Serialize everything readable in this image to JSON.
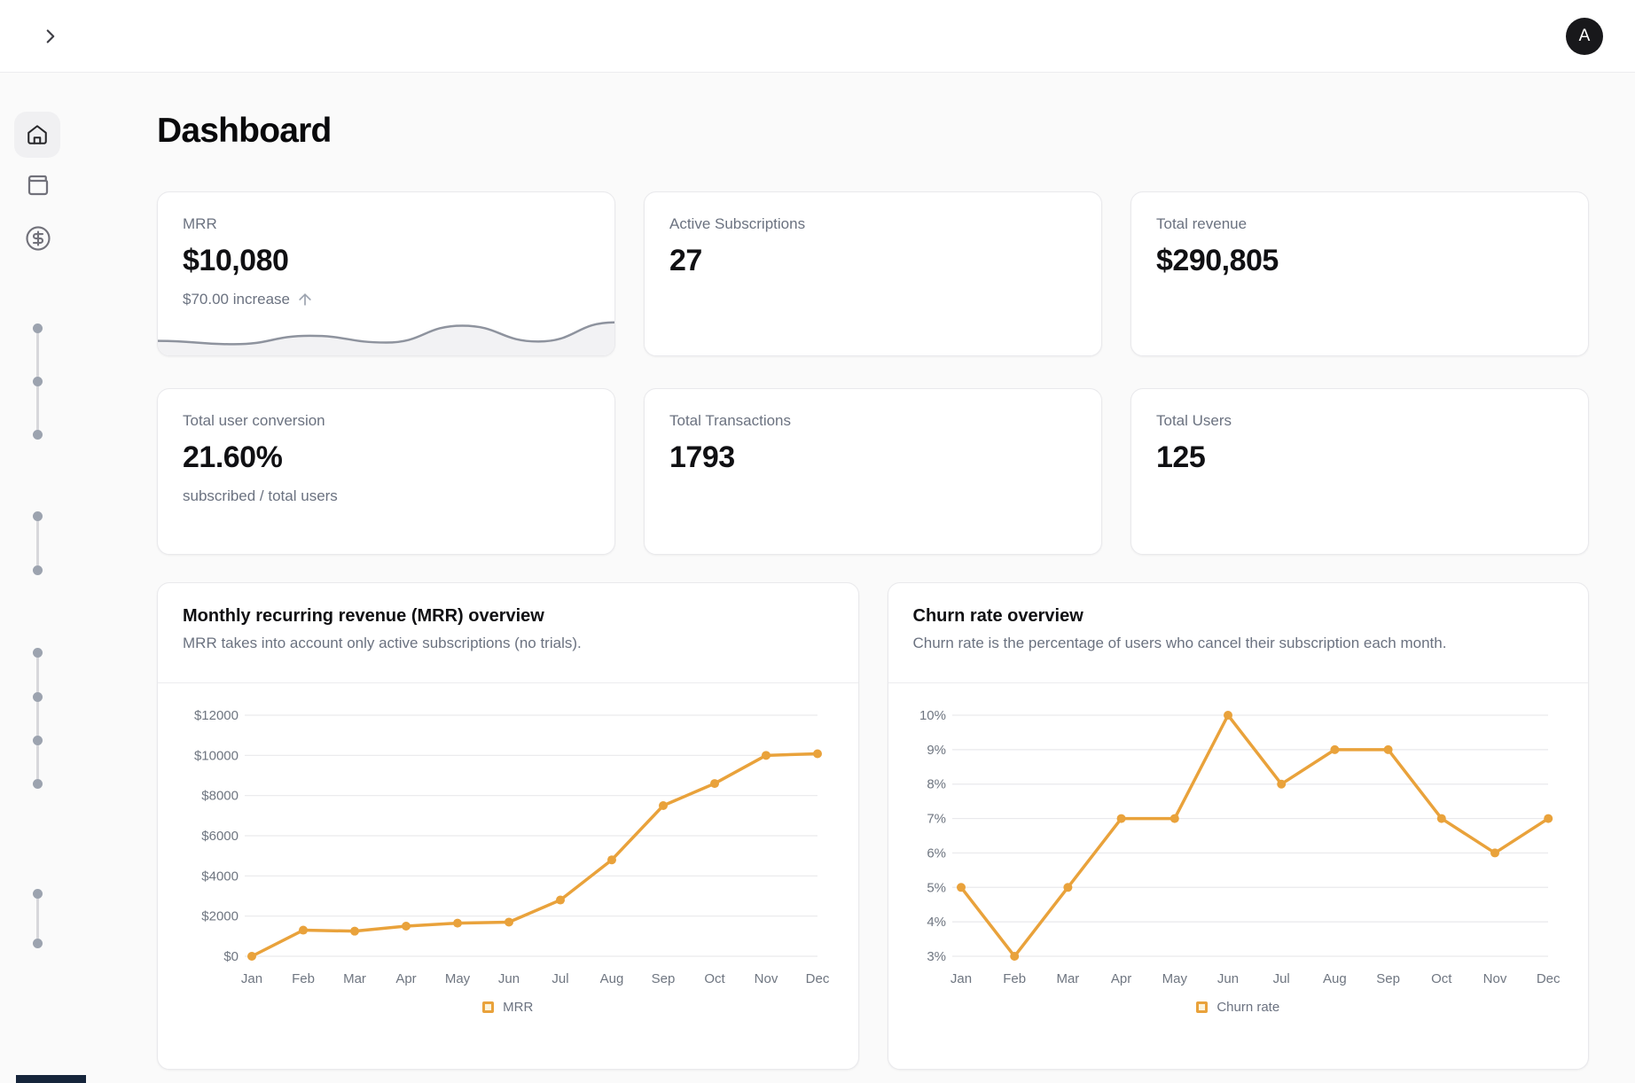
{
  "header": {
    "avatar_initial": "A",
    "collapse_icon": "chevron-right-icon"
  },
  "page": {
    "title": "Dashboard"
  },
  "sidebar": {
    "items": [
      {
        "id": "home",
        "icon": "home-icon",
        "active": true
      },
      {
        "id": "subscriptions",
        "icon": "wallet-icon",
        "active": false
      },
      {
        "id": "revenue",
        "icon": "circle-dollar-icon",
        "active": false
      }
    ]
  },
  "colors": {
    "accent": "#e9a23b",
    "legend_swatch_fill": "#fcf4dd",
    "grid_line": "#e9e9ec",
    "axis_text": "#6f7681",
    "sparkline_stroke": "#8e939e",
    "sparkline_fill": "#f2f2f4",
    "avatar_bg": "#18181b"
  },
  "stats": [
    {
      "label": "MRR",
      "value": "$10,080",
      "change": "$70.00 increase",
      "change_icon": "arrow-up-icon",
      "sparkline": [
        0.3,
        0.2,
        0.45,
        0.25,
        0.75,
        0.28,
        0.85
      ]
    },
    {
      "label": "Active Subscriptions",
      "value": "27"
    },
    {
      "label": "Total revenue",
      "value": "$290,805"
    },
    {
      "label": "Total user conversion",
      "value": "21.60%",
      "sub": "subscribed / total users"
    },
    {
      "label": "Total Transactions",
      "value": "1793"
    },
    {
      "label": "Total Users",
      "value": "125"
    }
  ],
  "chart_data": [
    {
      "type": "line",
      "title": "Monthly recurring revenue (MRR) overview",
      "subtitle": "MRR takes into account only active subscriptions (no trials).",
      "categories": [
        "Jan",
        "Feb",
        "Mar",
        "Apr",
        "May",
        "Jun",
        "Jul",
        "Aug",
        "Sep",
        "Oct",
        "Nov",
        "Dec"
      ],
      "values": [
        0,
        1300,
        1250,
        1500,
        1650,
        1700,
        2800,
        4800,
        7500,
        8600,
        10000,
        10080
      ],
      "ticks": [
        "$12000",
        "$10000",
        "$8000",
        "$6000",
        "$4000",
        "$2000",
        "$0"
      ],
      "ylim": [
        0,
        12000
      ],
      "legend": "MRR",
      "legend_position": "bottom",
      "grid": true
    },
    {
      "type": "line",
      "title": "Churn rate overview",
      "subtitle": "Churn rate is the percentage of users who cancel their subscription each month.",
      "categories": [
        "Jan",
        "Feb",
        "Mar",
        "Apr",
        "May",
        "Jun",
        "Jul",
        "Aug",
        "Sep",
        "Oct",
        "Nov",
        "Dec"
      ],
      "values": [
        5,
        3,
        5,
        7,
        7,
        10,
        8,
        9,
        9,
        7,
        6,
        7
      ],
      "ticks": [
        "10%",
        "9%",
        "8%",
        "7%",
        "6%",
        "5%",
        "4%",
        "3%"
      ],
      "ylim": [
        3,
        10
      ],
      "legend": "Churn rate",
      "legend_position": "bottom",
      "grid": true
    }
  ]
}
